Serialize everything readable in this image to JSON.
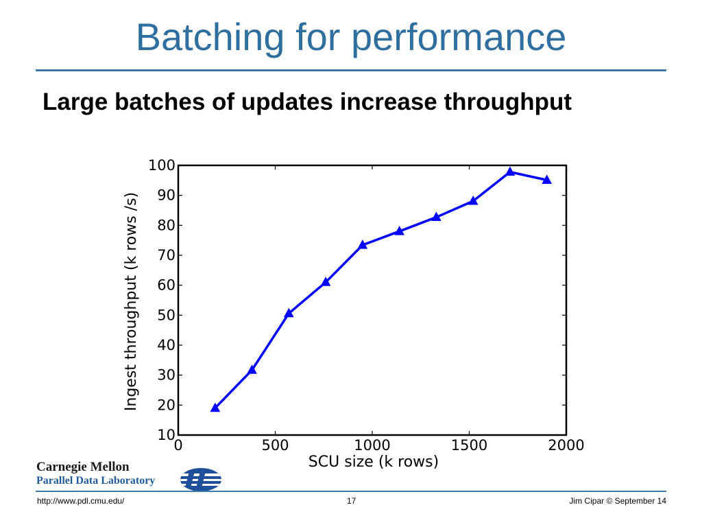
{
  "slide": {
    "title": "Batching for performance",
    "subtitle": "Large batches of updates increase throughput"
  },
  "chart_data": {
    "type": "line",
    "xlabel": "SCU size (k rows)",
    "ylabel": "Ingest throughput (k rows /s)",
    "xlim": [
      0,
      2000
    ],
    "ylim": [
      10,
      100
    ],
    "xticks": [
      0,
      500,
      1000,
      1500,
      2000
    ],
    "yticks": [
      10,
      20,
      30,
      40,
      50,
      60,
      70,
      80,
      90,
      100
    ],
    "grid": false,
    "series": [
      {
        "marker": "triangle",
        "color": "#0000ff",
        "x": [
          190,
          380,
          570,
          760,
          950,
          1140,
          1330,
          1520,
          1710,
          1900
        ],
        "y": [
          19,
          31.7,
          50.6,
          61,
          73.4,
          78,
          82.7,
          88.1,
          97.8,
          95.1
        ]
      }
    ]
  },
  "logos": {
    "cmu_line1": "Carnegie Mellon",
    "cmu_line2": "Parallel Data Laboratory"
  },
  "footer": {
    "url": "http://www.pdl.cmu.edu/",
    "page": "17",
    "author": "Jim Cipar  © September 14"
  },
  "colors": {
    "title": "#2f6f9f",
    "rule": "#3c78a8",
    "series": "#0000ff"
  }
}
